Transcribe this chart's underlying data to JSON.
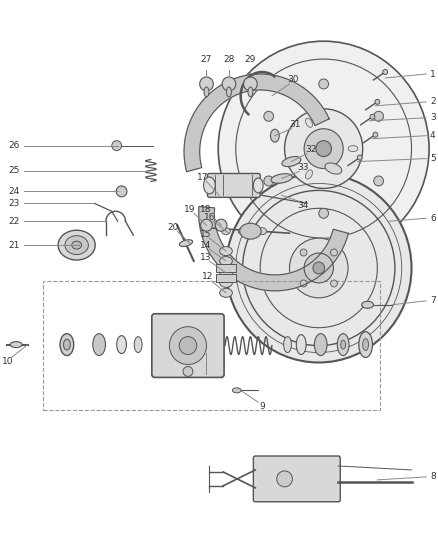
{
  "bg_color": "#ffffff",
  "line_color": "#555555",
  "text_color": "#333333",
  "figsize": [
    4.38,
    5.33
  ],
  "dpi": 100
}
